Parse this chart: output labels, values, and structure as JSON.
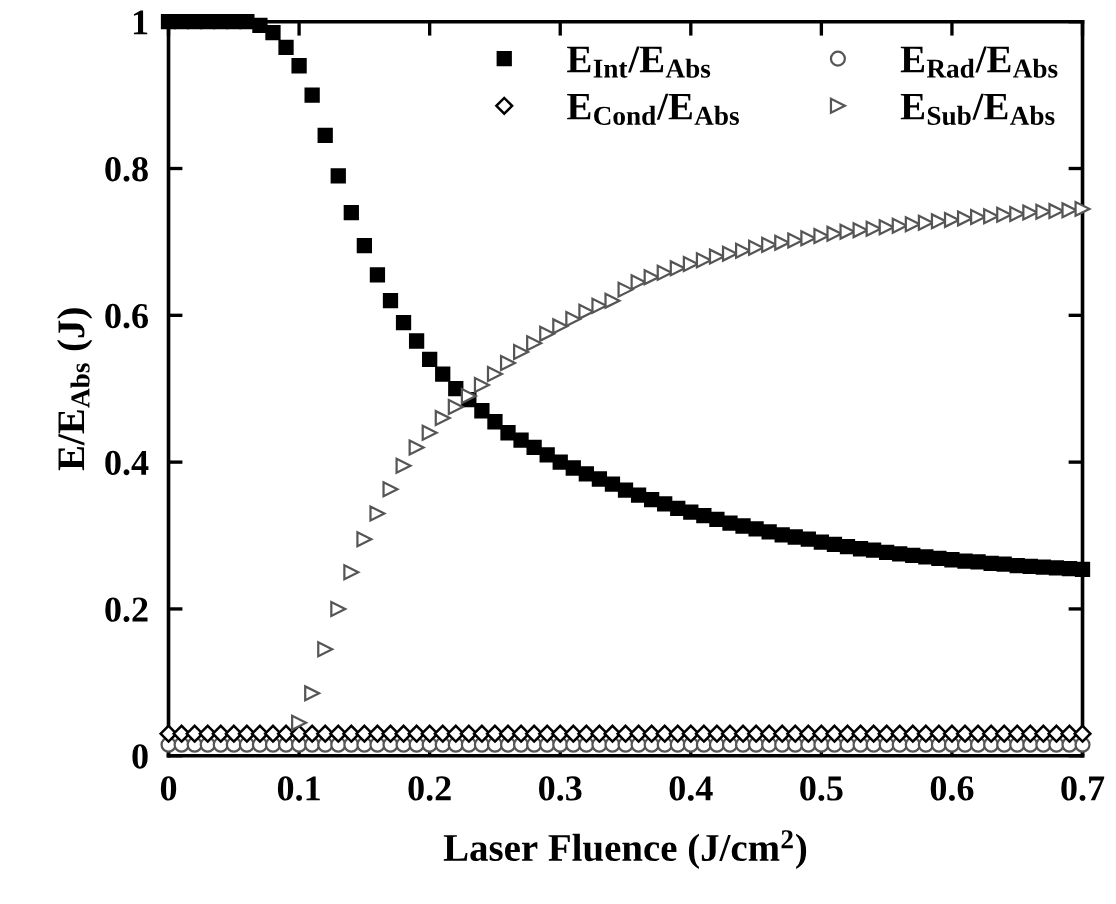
{
  "chart_data": {
    "type": "scatter",
    "xlabel": "Laser Fluence (J/cm$^{2}$)",
    "ylabel": "E/E$_{Abs}$ (J)",
    "x": [
      0,
      0.01,
      0.02,
      0.03,
      0.04,
      0.05,
      0.06,
      0.07,
      0.08,
      0.09,
      0.1,
      0.11,
      0.12,
      0.13,
      0.14,
      0.15,
      0.16,
      0.17,
      0.18,
      0.19,
      0.2,
      0.21,
      0.22,
      0.23,
      0.24,
      0.25,
      0.26,
      0.27,
      0.28,
      0.29,
      0.3,
      0.31,
      0.32,
      0.33,
      0.34,
      0.35,
      0.36,
      0.37,
      0.38,
      0.39,
      0.4,
      0.41,
      0.42,
      0.43,
      0.44,
      0.45,
      0.46,
      0.47,
      0.48,
      0.49,
      0.5,
      0.51,
      0.52,
      0.53,
      0.54,
      0.55,
      0.56,
      0.57,
      0.58,
      0.59,
      0.6,
      0.61,
      0.62,
      0.63,
      0.64,
      0.65,
      0.66,
      0.67,
      0.68,
      0.69,
      0.7
    ],
    "series": [
      {
        "name": "E$_{Int}$/E$_{Abs}$",
        "color": "#000000",
        "marker": "square",
        "values": [
          1,
          1,
          1,
          1,
          1,
          1,
          1,
          0.995,
          0.985,
          0.965,
          0.94,
          0.9,
          0.845,
          0.79,
          0.74,
          0.695,
          0.655,
          0.62,
          0.59,
          0.565,
          0.54,
          0.52,
          0.5,
          0.485,
          0.47,
          0.455,
          0.44,
          0.43,
          0.42,
          0.41,
          0.4,
          0.392,
          0.384,
          0.377,
          0.37,
          0.362,
          0.355,
          0.349,
          0.343,
          0.337,
          0.332,
          0.327,
          0.322,
          0.317,
          0.313,
          0.309,
          0.305,
          0.301,
          0.298,
          0.295,
          0.291,
          0.288,
          0.285,
          0.282,
          0.28,
          0.277,
          0.275,
          0.273,
          0.271,
          0.269,
          0.267,
          0.265,
          0.264,
          0.262,
          0.261,
          0.259,
          0.258,
          0.257,
          0.256,
          0.255,
          0.254
        ]
      },
      {
        "name": "E$_{Rad}$/E$_{Abs}$",
        "color": "#555555",
        "marker": "circle",
        "values": [
          0.015,
          0.015,
          0.015,
          0.015,
          0.015,
          0.015,
          0.015,
          0.015,
          0.015,
          0.015,
          0.015,
          0.015,
          0.015,
          0.015,
          0.015,
          0.015,
          0.015,
          0.015,
          0.015,
          0.015,
          0.015,
          0.015,
          0.015,
          0.015,
          0.015,
          0.015,
          0.015,
          0.015,
          0.015,
          0.015,
          0.015,
          0.015,
          0.015,
          0.015,
          0.015,
          0.015,
          0.015,
          0.015,
          0.015,
          0.015,
          0.015,
          0.015,
          0.015,
          0.015,
          0.015,
          0.015,
          0.015,
          0.015,
          0.015,
          0.015,
          0.015,
          0.015,
          0.015,
          0.015,
          0.015,
          0.015,
          0.015,
          0.015,
          0.015,
          0.015,
          0.015,
          0.015,
          0.015,
          0.015,
          0.015,
          0.015,
          0.015,
          0.015,
          0.015,
          0.015,
          0.015
        ]
      },
      {
        "name": "E$_{Cond}$/E$_{Abs}$",
        "color": "#000000",
        "marker": "diamond",
        "values": [
          0.03,
          0.03,
          0.03,
          0.03,
          0.03,
          0.03,
          0.03,
          0.03,
          0.03,
          0.03,
          0.03,
          0.03,
          0.03,
          0.03,
          0.03,
          0.03,
          0.03,
          0.03,
          0.03,
          0.03,
          0.03,
          0.03,
          0.03,
          0.03,
          0.03,
          0.03,
          0.03,
          0.03,
          0.03,
          0.03,
          0.03,
          0.03,
          0.03,
          0.03,
          0.03,
          0.03,
          0.03,
          0.03,
          0.03,
          0.03,
          0.03,
          0.03,
          0.03,
          0.03,
          0.03,
          0.03,
          0.03,
          0.03,
          0.03,
          0.03,
          0.03,
          0.03,
          0.03,
          0.03,
          0.03,
          0.03,
          0.03,
          0.03,
          0.03,
          0.03,
          0.03,
          0.03,
          0.03,
          0.03,
          0.03,
          0.03,
          0.03,
          0.03,
          0.03,
          0.03,
          0.03
        ]
      },
      {
        "name": "E$_{Sub}$/E$_{Abs}$",
        "color": "#555555",
        "marker": "triangle",
        "values": [
          null,
          null,
          null,
          null,
          null,
          null,
          null,
          null,
          null,
          null,
          0.045,
          0.085,
          0.145,
          0.2,
          0.25,
          0.295,
          0.33,
          0.363,
          0.395,
          0.42,
          0.44,
          0.46,
          0.475,
          0.49,
          0.505,
          0.52,
          0.535,
          0.55,
          0.562,
          0.575,
          0.585,
          0.595,
          0.605,
          0.613,
          0.62,
          0.635,
          0.645,
          0.652,
          0.658,
          0.664,
          0.67,
          0.675,
          0.68,
          0.684,
          0.688,
          0.692,
          0.696,
          0.699,
          0.702,
          0.705,
          0.708,
          0.711,
          0.714,
          0.716,
          0.718,
          0.72,
          0.722,
          0.724,
          0.726,
          0.728,
          0.73,
          0.732,
          0.734,
          0.735,
          0.737,
          0.738,
          0.74,
          0.741,
          0.742,
          0.743,
          0.745
        ]
      }
    ],
    "xlim": [
      0,
      0.7
    ],
    "xticks": [
      0,
      0.1,
      0.2,
      0.3,
      0.4,
      0.5,
      0.6,
      0.7
    ],
    "ylim": [
      0,
      1
    ],
    "yticks": [
      0,
      0.2,
      0.4,
      0.6,
      0.8,
      1
    ],
    "grid": false,
    "legend": "top right"
  }
}
